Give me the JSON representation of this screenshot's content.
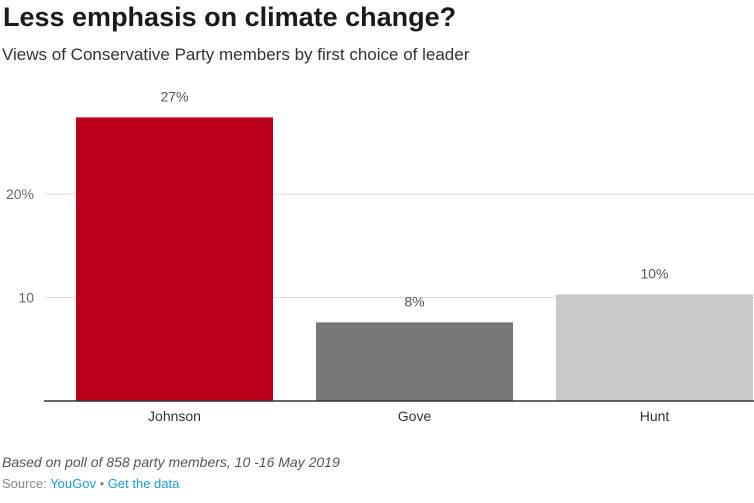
{
  "title": "Less emphasis on climate change?",
  "subtitle": "Views of Conservative Party members by first choice of leader",
  "footer": {
    "note": "Based on poll of 858 party members, 10 -16 May 2019",
    "source_prefix": "Source:",
    "source_name": "YouGov",
    "separator": "•",
    "get_data": "Get the data"
  },
  "chart_data": {
    "type": "bar",
    "categories": [
      "Johnson",
      "Gove",
      "Hunt"
    ],
    "values": [
      27.4,
      7.6,
      10.3
    ],
    "value_labels": [
      "27%",
      "8%",
      "10%"
    ],
    "colors": [
      "#bd0019",
      "#777777",
      "#c9c9c9"
    ],
    "yticks": [
      10,
      20
    ],
    "ytick_labels": [
      "10",
      "20%"
    ],
    "ylim": [
      0,
      30
    ],
    "grid": true
  }
}
